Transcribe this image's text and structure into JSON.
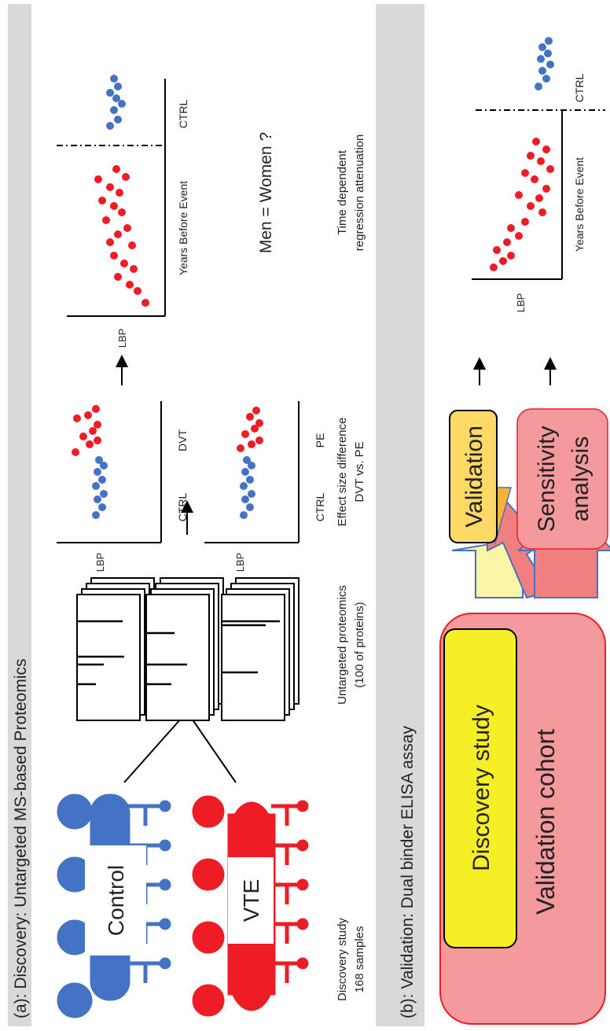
{
  "panel_a": {
    "header": "(a):  Discovery: Untargeted MS-based Proteomics",
    "groups": {
      "control": "Control",
      "vte": "VTE"
    },
    "discovery_caption": {
      "line1": "Discovery study",
      "line2": "168 samples"
    },
    "proteomics_caption": {
      "line1": "Untargeted proteomics",
      "line2": "(100 of proteins)"
    },
    "scatter_dvt": {
      "ylabel": "LBP",
      "x_left": "CTRL",
      "x_right": "DVT"
    },
    "scatter_pe": {
      "ylabel": "LBP",
      "x_left": "CTRL",
      "x_right": "PE"
    },
    "effect_caption": {
      "line1": "Effect size difference",
      "line2": "DVT vs. PE"
    },
    "time_scatter": {
      "ylabel": "LBP",
      "x_event": "Years Before Event",
      "x_ctrl": "CTRL"
    },
    "men_women": "Men = Women ?",
    "time_caption": {
      "line1": "Time dependent",
      "line2": "regression attenuation"
    }
  },
  "panel_b": {
    "header": "(b):  Validation: Dual binder ELISA assay",
    "validation_cohort": "Validation cohort",
    "discovery_study": "Discovery study",
    "validation": "Validation",
    "sensitivity": {
      "line1": "Sensitivity",
      "line2": "analysis"
    },
    "scatter": {
      "ylabel": "LBP",
      "x_event": "Years Before Event",
      "x_ctrl": "CTRL"
    }
  },
  "colors": {
    "header_bg": "#d9d9d9",
    "blue": "#4472c4",
    "red": "#ee1c24",
    "pink": "#f4999c",
    "yellow": "#f7ef26",
    "orange": "#ffd966",
    "light_yellow": "#fbf5a6"
  }
}
